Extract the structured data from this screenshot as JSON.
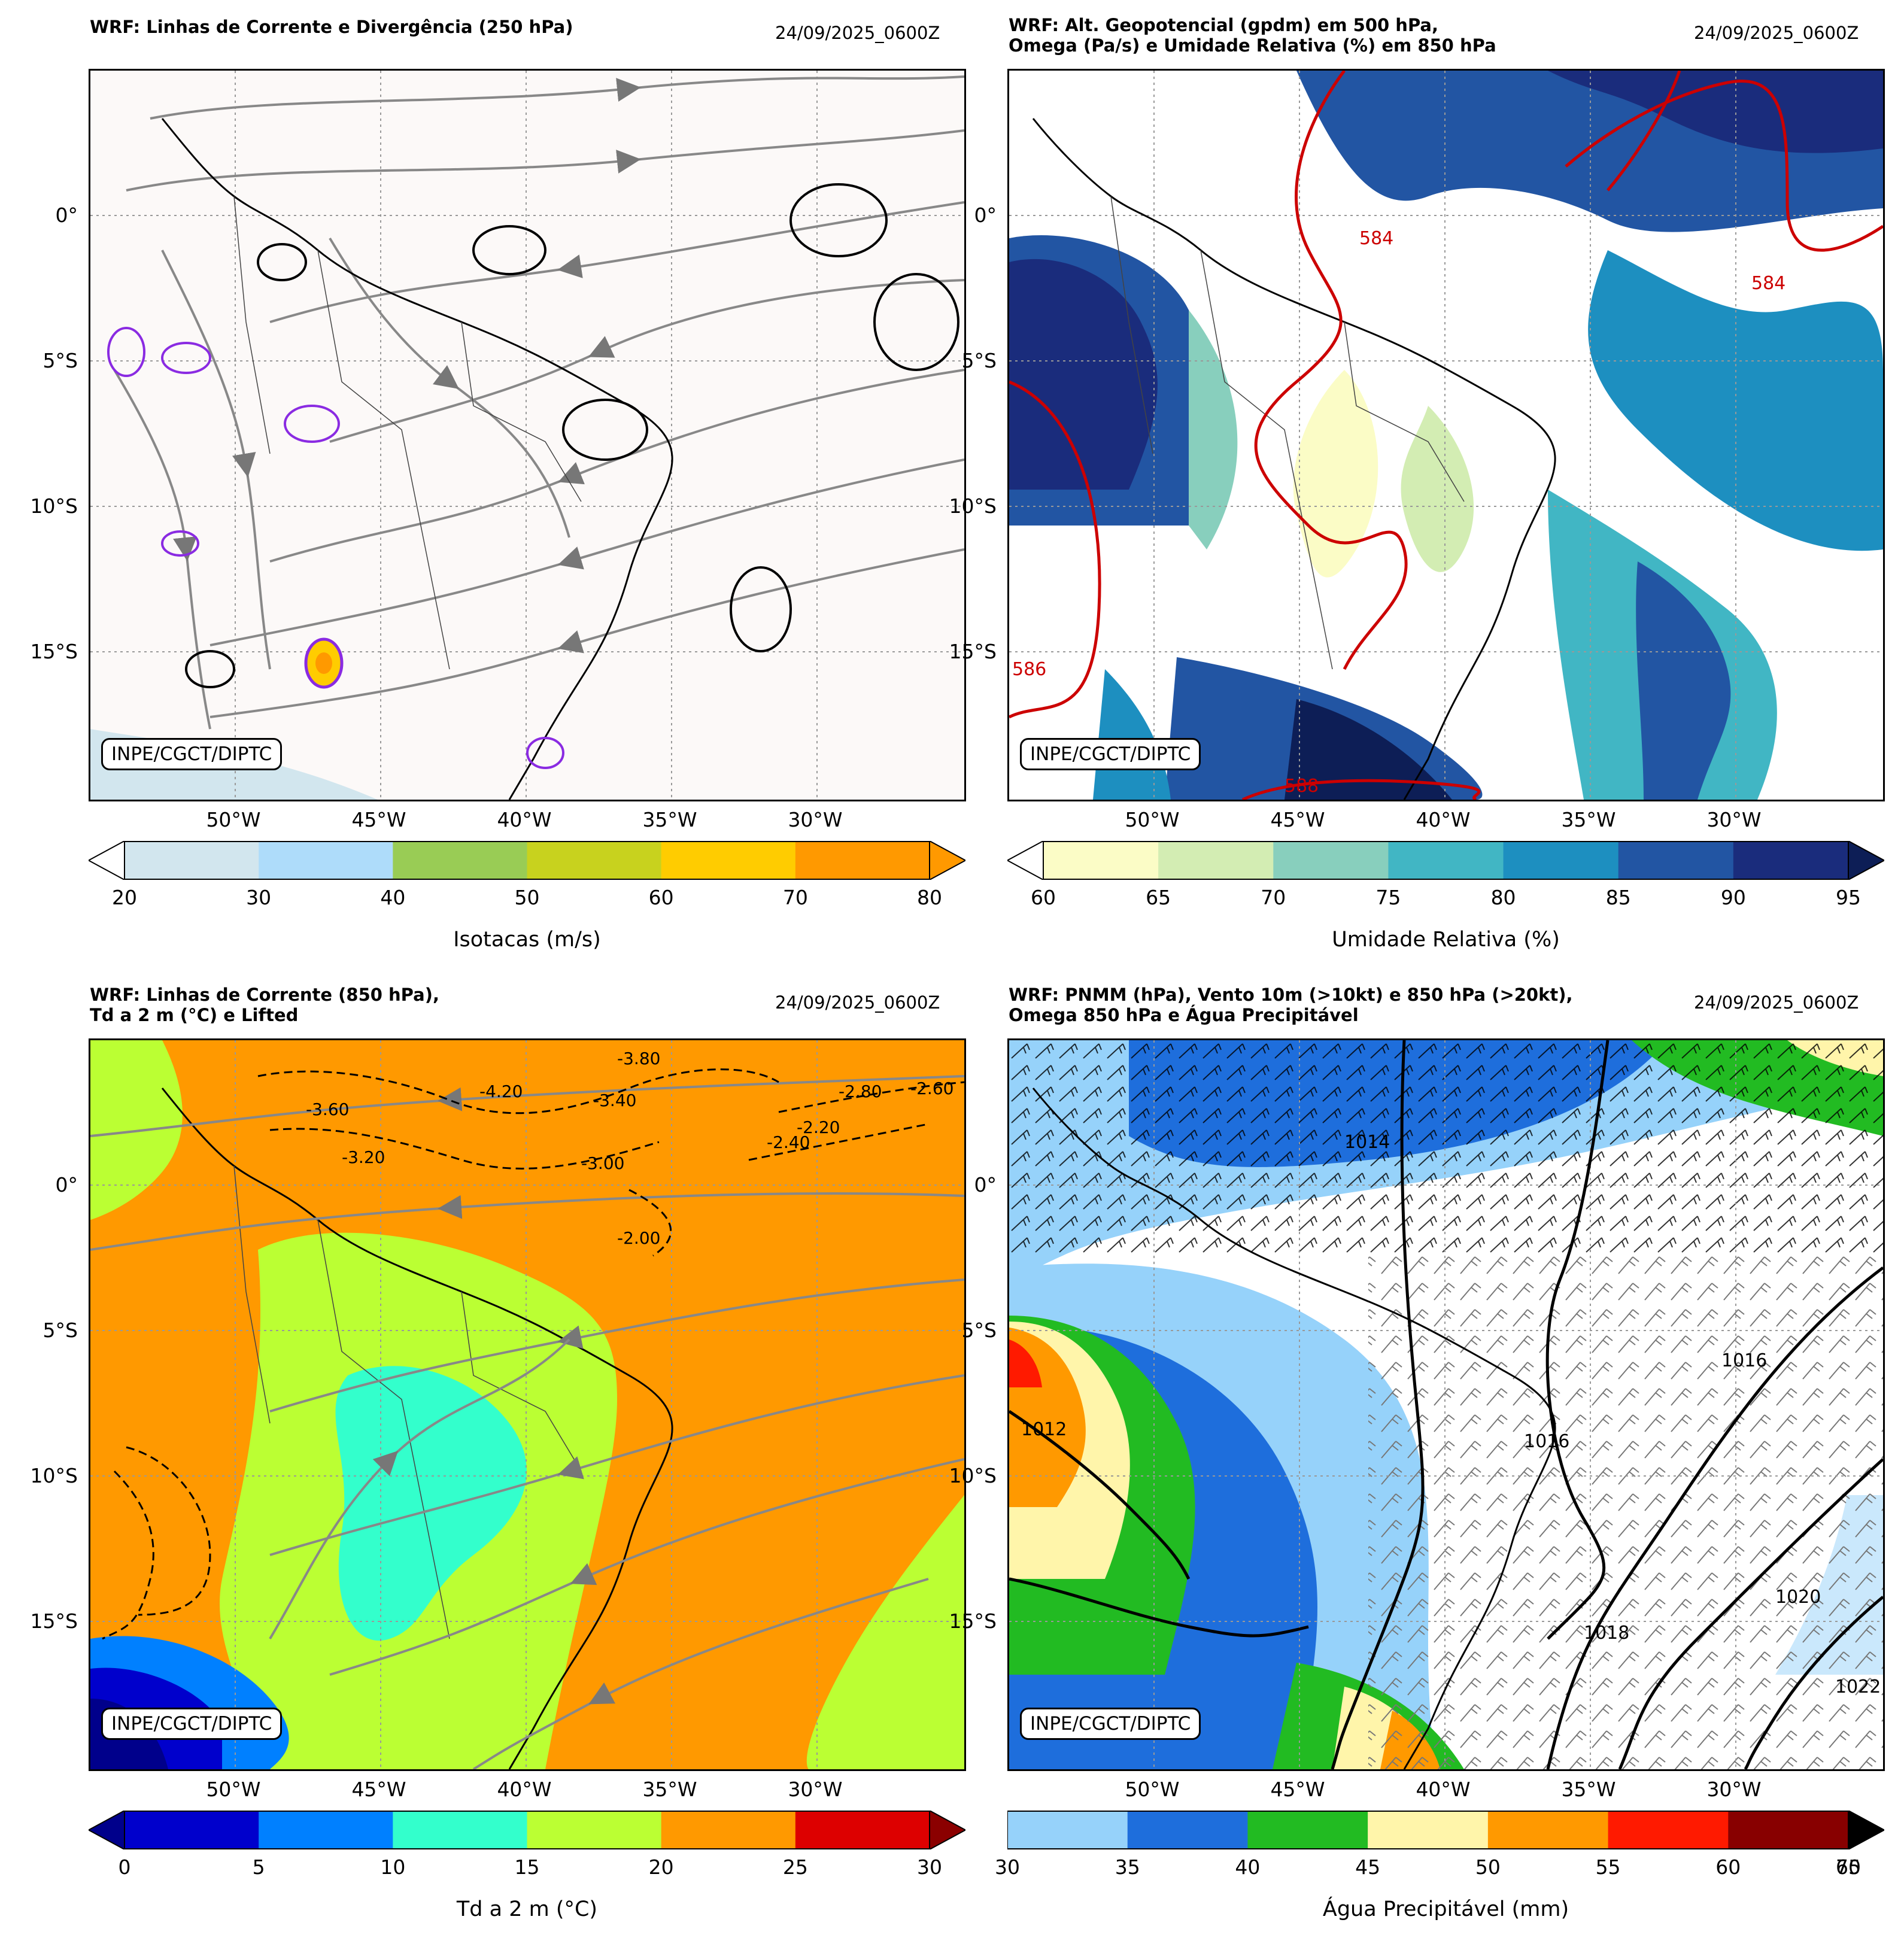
{
  "credit": "INPE/CGCT/DIPTC",
  "lat_ticks": [
    "0°",
    "5°S",
    "10°S",
    "15°S"
  ],
  "lon_ticks": [
    "50°W",
    "45°W",
    "40°W",
    "35°W",
    "30°W"
  ],
  "panels": [
    {
      "title": "WRF: Linhas de Corrente e Divergência (250 hPa)",
      "date": "24/09/2025_0600Z",
      "colorbar": {
        "label": "Isotacas (m/s)",
        "ticks": [
          "20",
          "30",
          "40",
          "50",
          "60",
          "70",
          "80"
        ],
        "colors": [
          "#d2e6ee",
          "#aedcfa",
          "#99cc55",
          "#c8d21e",
          "#ffcc00",
          "#ff9900"
        ],
        "extend_low": "#ffffff",
        "extend_high": "#ff9900"
      },
      "map_background": "#fcf9f8"
    },
    {
      "title": "WRF: Alt. Geopotencial (gpdm) em 500 hPa,\nOmega (Pa/s) e Umidade Relativa (%) em 850 hPa",
      "date": "24/09/2025_0600Z",
      "contour_labels": [
        "584",
        "584",
        "586",
        "588"
      ],
      "colorbar": {
        "label": "Umidade Relativa (%)",
        "ticks": [
          "60",
          "65",
          "70",
          "75",
          "80",
          "85",
          "90",
          "95"
        ],
        "colors": [
          "#fbfcc6",
          "#d3edb3",
          "#88cfbd",
          "#41b6c4",
          "#1d8fc0",
          "#2255a3",
          "#1a2c7c"
        ],
        "extend_low": "#ffffff",
        "extend_high": "#0d1e56"
      },
      "map_background": "#ffffff"
    },
    {
      "title": "WRF: Linhas de Corrente (850 hPa),\nTd a 2 m (°C) e Lifted",
      "date": "24/09/2025_0600Z",
      "contour_labels": [
        "-3.60",
        "-3.20",
        "-4.20",
        "-3.80",
        "-3.40",
        "-3.00",
        "-2.80",
        "-2.60",
        "-2.40",
        "-2.20",
        "-2.00"
      ],
      "colorbar": {
        "label": "Td a 2 m (°C)",
        "ticks": [
          "0",
          "5",
          "10",
          "15",
          "20",
          "25",
          "30"
        ],
        "colors": [
          "#0000cc",
          "#0080ff",
          "#33ffcc",
          "#bbff33",
          "#ff9900",
          "#dd0000"
        ],
        "extend_low": "#00008b",
        "extend_high": "#8b0000"
      },
      "map_background": "#ff9900"
    },
    {
      "title": "WRF: PNMM (hPa), Vento 10m (>10kt) e 850 hPa (>20kt),\nOmega 850 hPa e Água Precipitável",
      "date": "24/09/2025_0600Z",
      "contour_labels": [
        "1016",
        "1016",
        "1018",
        "1020",
        "1022",
        "1012",
        "1014"
      ],
      "colorbar": {
        "label": "Água Precipitável (mm)",
        "ticks": [
          "30",
          "35",
          "40",
          "45",
          "50",
          "55",
          "60",
          "65",
          "70"
        ],
        "colors": [
          "#96d2fa",
          "#1e6edc",
          "#22bb22",
          "#fff5aa",
          "#ff9900",
          "#ff1a00",
          "#880000"
        ],
        "extend_high": "#000000"
      },
      "map_background": "#ffffff"
    }
  ]
}
